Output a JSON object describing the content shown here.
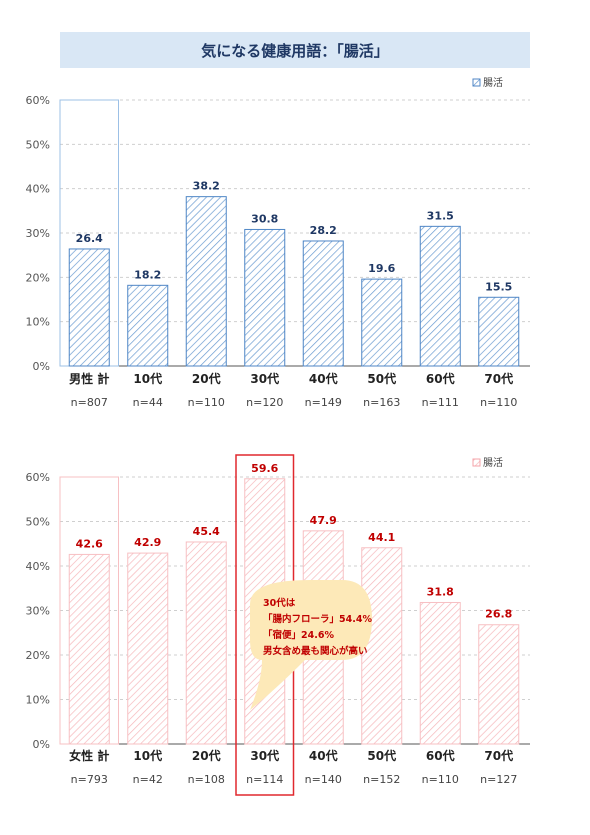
{
  "title": "気になる健康用語：「腸活」",
  "chart_data": [
    {
      "type": "bar",
      "legend": "腸活",
      "yticks": [
        "0%",
        "10%",
        "20%",
        "30%",
        "40%",
        "50%",
        "60%"
      ],
      "ylim": [
        0,
        60
      ],
      "grid": true,
      "legend_position": "top-right",
      "categories": [
        "男性 計",
        "10代",
        "20代",
        "30代",
        "40代",
        "50代",
        "60代",
        "70代"
      ],
      "n_labels": [
        "n=807",
        "n=44",
        "n=110",
        "n=120",
        "n=149",
        "n=163",
        "n=111",
        "n=110"
      ],
      "values": [
        26.4,
        18.2,
        38.2,
        30.8,
        28.2,
        19.6,
        31.5,
        15.5
      ],
      "color": "#4f86c6",
      "label_color": "#1f3864"
    },
    {
      "type": "bar",
      "legend": "腸活",
      "yticks": [
        "0%",
        "10%",
        "20%",
        "30%",
        "40%",
        "50%",
        "60%"
      ],
      "ylim": [
        0,
        60
      ],
      "grid": true,
      "legend_position": "top-right",
      "categories": [
        "女性 計",
        "10代",
        "20代",
        "30代",
        "40代",
        "50代",
        "60代",
        "70代"
      ],
      "n_labels": [
        "n=793",
        "n=42",
        "n=108",
        "n=114",
        "n=140",
        "n=152",
        "n=110",
        "n=127"
      ],
      "values": [
        42.6,
        42.9,
        45.4,
        59.6,
        47.9,
        44.1,
        31.8,
        26.8
      ],
      "color": "#f4a3a8",
      "label_color": "#c00000",
      "highlight_index": 3
    }
  ],
  "callout": {
    "lines": [
      "30代は",
      "「腸内フローラ」54.4%",
      "「宿便」24.6%",
      "男女含め最も関心が高い"
    ],
    "color": "#c00000",
    "fill": "#fde9b8"
  }
}
